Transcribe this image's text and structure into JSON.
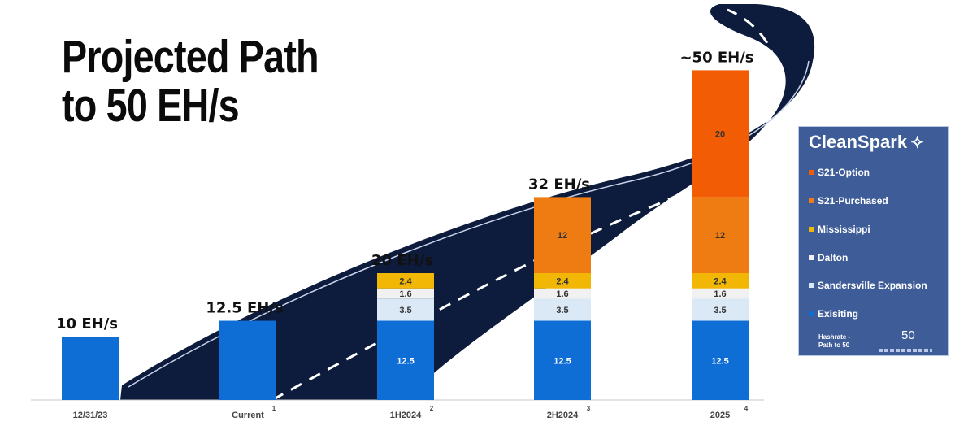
{
  "slide": {
    "title_line1": "Projected Path",
    "title_line2": "to 50 EH/s"
  },
  "legend": {
    "brand": "CleanSpark",
    "brand_icon": "sparkle-icon",
    "items": [
      {
        "label": "S21-Option",
        "color": "#f25c05"
      },
      {
        "label": "S21-Purchased",
        "color": "#ee7c12"
      },
      {
        "label": "Mississippi",
        "color": "#f2b705"
      },
      {
        "label": "Dalton",
        "color": "#f1f1f1"
      },
      {
        "label": "Sandersville Expansion",
        "color": "#dbe9f6"
      },
      {
        "label": "Exisiting",
        "color": "#0f6ed5"
      }
    ],
    "note": "Hashrate - Path to 50",
    "fifty": "50"
  },
  "chart_data": {
    "type": "bar",
    "stacked": true,
    "title": "Projected Path to 50 EH/s",
    "categories": [
      "12/31/23",
      "Current",
      "1H2024",
      "2H2024",
      "2025"
    ],
    "footnotes": [
      "",
      "1",
      "2",
      "3",
      "4"
    ],
    "totals_labels": [
      "10 EH/s",
      "12.5 EH/s",
      "20 EH/s",
      "32 EH/s",
      "~50 EH/s"
    ],
    "ylim": [
      0,
      50
    ],
    "series": [
      {
        "name": "Exisiting",
        "color": "#0f6ed5",
        "text_color": "#ffffff",
        "values": [
          10,
          12.5,
          12.5,
          12.5,
          12.5
        ],
        "labels": [
          "",
          "",
          "12.5",
          "12.5",
          "12.5"
        ]
      },
      {
        "name": "Sandersville Expansion",
        "color": "#dbe9f6",
        "text_color": "#333333",
        "values": [
          0,
          0,
          3.5,
          3.5,
          3.5
        ],
        "labels": [
          "",
          "",
          "3.5",
          "3.5",
          "3.5"
        ]
      },
      {
        "name": "Dalton",
        "color": "#f1f1f1",
        "text_color": "#333333",
        "values": [
          0,
          0,
          1.6,
          1.6,
          1.6
        ],
        "labels": [
          "",
          "",
          "1.6",
          "1.6",
          "1.6"
        ]
      },
      {
        "name": "Mississippi",
        "color": "#f2b705",
        "text_color": "#333333",
        "values": [
          0,
          0,
          2.4,
          2.4,
          2.4
        ],
        "labels": [
          "",
          "",
          "2.4",
          "2.4",
          "2.4"
        ]
      },
      {
        "name": "S21-Purchased",
        "color": "#ee7c12",
        "text_color": "#333333",
        "values": [
          0,
          0,
          0,
          12,
          12
        ],
        "labels": [
          "",
          "",
          "",
          "12",
          "12"
        ]
      },
      {
        "name": "S21-Option",
        "color": "#f25c05",
        "text_color": "#333333",
        "values": [
          0,
          0,
          0,
          0,
          20
        ],
        "labels": [
          "",
          "",
          "",
          "",
          "20"
        ]
      }
    ]
  }
}
